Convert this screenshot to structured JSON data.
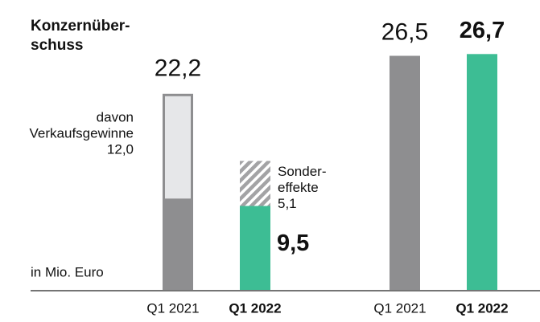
{
  "chart_data": [
    {
      "type": "stacked_bar",
      "title_lines": [
        "Konzernüber-",
        "schuss"
      ],
      "note": "in Mio. Euro",
      "bars": [
        {
          "category": "Q1 2021",
          "total": 22.2,
          "total_label": "22,2",
          "segments": [
            {
              "value": 10.2,
              "color": "#8e8e90"
            },
            {
              "value": 12.0,
              "value_label": "12,0",
              "label_lines": [
                "davon",
                "Verkaufsgewinne"
              ],
              "color": "#e6e7e9",
              "outline": "#8e8e90"
            }
          ]
        },
        {
          "category": "Q1 2022",
          "segments": [
            {
              "value": 9.5,
              "value_label": "9,5",
              "color": "#3dbd94"
            },
            {
              "value": 5.1,
              "value_label": "5,1",
              "label_lines": [
                "Sonder-",
                "effekte"
              ],
              "pattern": "hatch"
            }
          ]
        }
      ]
    },
    {
      "type": "stacked_bar",
      "bars": [
        {
          "category": "Q1 2021",
          "segments": [
            {
              "value": 26.5,
              "value_label": "26,5",
              "color": "#8e8e90"
            }
          ]
        },
        {
          "category": "Q1 2022",
          "segments": [
            {
              "value": 26.7,
              "value_label": "26,7",
              "color": "#3dbd94"
            }
          ]
        }
      ]
    }
  ]
}
